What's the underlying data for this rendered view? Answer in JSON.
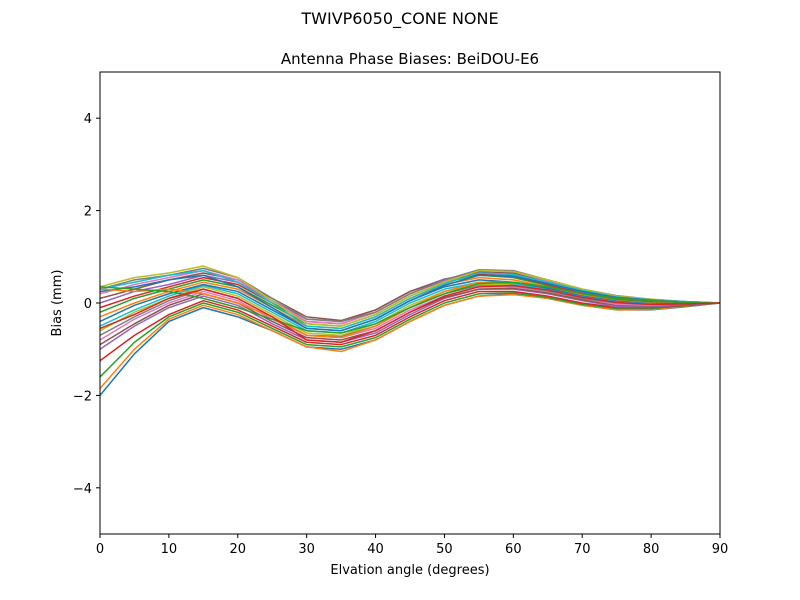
{
  "chart_data": {
    "type": "line",
    "suptitle": "TWIVP6050_CONE  NONE",
    "title": "Antenna Phase Biases: BeiDOU-E6",
    "xlabel": "Elvation angle (degrees)",
    "ylabel": "Bias (mm)",
    "xlim": [
      0,
      90
    ],
    "ylim": [
      -5,
      5
    ],
    "xticks": [
      0,
      10,
      20,
      30,
      40,
      50,
      60,
      70,
      80,
      90
    ],
    "yticks": [
      -4,
      -2,
      0,
      2,
      4
    ],
    "ytick_labels": [
      "−4",
      "−2",
      "0",
      "2",
      "4"
    ],
    "grid": false,
    "legend": "none",
    "x": [
      0,
      5,
      10,
      15,
      20,
      25,
      30,
      35,
      40,
      45,
      50,
      55,
      60,
      65,
      70,
      75,
      80,
      85,
      90
    ],
    "palette": [
      "#1f77b4",
      "#ff7f0e",
      "#2ca02c",
      "#d62728",
      "#9467bd",
      "#8c564b",
      "#e377c2",
      "#7f7f7f",
      "#bcbd22",
      "#17becf"
    ],
    "series": [
      {
        "values": [
          -2.0,
          -1.1,
          -0.4,
          -0.1,
          -0.3,
          -0.6,
          -0.95,
          -1.0,
          -0.8,
          -0.4,
          -0.05,
          0.15,
          0.2,
          0.1,
          -0.05,
          -0.15,
          -0.15,
          -0.08,
          0.0
        ]
      },
      {
        "values": [
          -1.85,
          -1.0,
          -0.35,
          -0.05,
          -0.25,
          -0.6,
          -0.95,
          -1.05,
          -0.8,
          -0.4,
          -0.05,
          0.15,
          0.18,
          0.1,
          -0.05,
          -0.15,
          -0.14,
          -0.07,
          0.0
        ]
      },
      {
        "values": [
          -1.6,
          -0.85,
          -0.3,
          0.0,
          -0.2,
          -0.55,
          -0.9,
          -0.95,
          -0.75,
          -0.35,
          0.0,
          0.2,
          0.22,
          0.12,
          -0.03,
          -0.12,
          -0.12,
          -0.06,
          0.0
        ]
      },
      {
        "values": [
          -1.25,
          -0.7,
          -0.25,
          0.05,
          -0.15,
          -0.5,
          -0.85,
          -0.9,
          -0.7,
          -0.3,
          0.05,
          0.25,
          0.25,
          0.15,
          0.0,
          -0.1,
          -0.1,
          -0.05,
          0.0
        ]
      },
      {
        "values": [
          -1.0,
          -0.5,
          -0.1,
          0.15,
          -0.05,
          -0.45,
          -0.8,
          -0.85,
          -0.65,
          -0.25,
          0.1,
          0.3,
          0.3,
          0.2,
          0.05,
          -0.08,
          -0.08,
          -0.04,
          0.0
        ]
      },
      {
        "values": [
          -0.9,
          -0.45,
          -0.05,
          0.2,
          0.0,
          -0.4,
          -0.75,
          -0.8,
          -0.6,
          -0.2,
          0.12,
          0.3,
          0.32,
          0.22,
          0.07,
          -0.05,
          -0.06,
          -0.03,
          0.0
        ]
      },
      {
        "values": [
          -0.8,
          -0.35,
          0.0,
          0.25,
          0.05,
          -0.35,
          -0.7,
          -0.75,
          -0.55,
          -0.15,
          0.15,
          0.35,
          0.35,
          0.25,
          0.1,
          -0.03,
          -0.05,
          -0.02,
          0.0
        ]
      },
      {
        "values": [
          -0.7,
          -0.3,
          0.05,
          0.3,
          0.1,
          -0.3,
          -0.7,
          -0.72,
          -0.5,
          -0.1,
          0.2,
          0.38,
          0.37,
          0.26,
          0.1,
          0.0,
          -0.03,
          -0.02,
          0.0
        ]
      },
      {
        "values": [
          -0.6,
          -0.2,
          0.1,
          0.35,
          0.15,
          -0.25,
          -0.65,
          -0.7,
          -0.45,
          -0.05,
          0.25,
          0.4,
          0.4,
          0.28,
          0.12,
          0.02,
          -0.02,
          -0.01,
          0.0
        ]
      },
      {
        "values": [
          -0.5,
          -0.15,
          0.15,
          0.38,
          0.2,
          -0.2,
          -0.6,
          -0.65,
          -0.4,
          0.0,
          0.3,
          0.45,
          0.42,
          0.3,
          0.14,
          0.04,
          0.0,
          0.0,
          0.0
        ]
      },
      {
        "values": [
          -0.4,
          -0.05,
          0.2,
          0.4,
          0.25,
          -0.15,
          -0.55,
          -0.6,
          -0.35,
          0.05,
          0.35,
          0.5,
          0.45,
          0.32,
          0.16,
          0.05,
          0.01,
          0.0,
          0.0
        ]
      },
      {
        "values": [
          -0.3,
          0.0,
          0.25,
          0.45,
          0.3,
          -0.1,
          -0.5,
          -0.55,
          -0.3,
          0.1,
          0.4,
          0.55,
          0.5,
          0.35,
          0.18,
          0.07,
          0.02,
          0.01,
          0.0
        ]
      },
      {
        "values": [
          -0.2,
          0.1,
          0.3,
          0.5,
          0.35,
          -0.05,
          -0.45,
          -0.5,
          -0.25,
          0.15,
          0.45,
          0.6,
          0.55,
          0.38,
          0.2,
          0.08,
          0.03,
          0.01,
          0.0
        ]
      },
      {
        "values": [
          -0.1,
          0.15,
          0.35,
          0.55,
          0.4,
          0.0,
          -0.4,
          -0.45,
          -0.2,
          0.2,
          0.5,
          0.62,
          0.58,
          0.4,
          0.22,
          0.1,
          0.04,
          0.02,
          0.0
        ]
      },
      {
        "values": [
          0.0,
          0.25,
          0.4,
          0.6,
          0.45,
          0.05,
          -0.35,
          -0.4,
          -0.15,
          0.25,
          0.52,
          0.65,
          0.6,
          0.42,
          0.24,
          0.12,
          0.05,
          0.02,
          0.0
        ]
      },
      {
        "values": [
          0.1,
          0.3,
          0.5,
          0.65,
          0.5,
          0.1,
          -0.3,
          -0.38,
          -0.15,
          0.25,
          0.5,
          0.68,
          0.65,
          0.45,
          0.25,
          0.12,
          0.06,
          0.02,
          0.0
        ]
      },
      {
        "values": [
          0.2,
          0.4,
          0.55,
          0.7,
          0.5,
          0.05,
          -0.4,
          -0.45,
          -0.2,
          0.2,
          0.48,
          0.7,
          0.68,
          0.48,
          0.28,
          0.14,
          0.07,
          0.03,
          0.0
        ]
      },
      {
        "values": [
          0.3,
          0.5,
          0.6,
          0.75,
          0.55,
          0.1,
          -0.35,
          -0.4,
          -0.2,
          0.2,
          0.5,
          0.72,
          0.7,
          0.5,
          0.3,
          0.16,
          0.08,
          0.03,
          0.0
        ]
      },
      {
        "values": [
          0.35,
          0.55,
          0.65,
          0.8,
          0.55,
          0.05,
          -0.45,
          -0.5,
          -0.25,
          0.15,
          0.45,
          0.7,
          0.68,
          0.5,
          0.3,
          0.15,
          0.08,
          0.03,
          0.0
        ]
      },
      {
        "values": [
          0.3,
          0.45,
          0.6,
          0.7,
          0.45,
          0.0,
          -0.5,
          -0.55,
          -0.3,
          0.1,
          0.42,
          0.65,
          0.62,
          0.45,
          0.27,
          0.13,
          0.07,
          0.03,
          0.0
        ]
      },
      {
        "values": [
          0.25,
          0.35,
          0.5,
          0.6,
          0.35,
          -0.1,
          -0.55,
          -0.6,
          -0.35,
          0.05,
          0.38,
          0.6,
          0.58,
          0.42,
          0.25,
          0.12,
          0.06,
          0.02,
          0.0
        ]
      },
      {
        "values": [
          0.3,
          0.25,
          0.3,
          0.2,
          0.0,
          -0.3,
          -0.7,
          -0.75,
          -0.5,
          -0.1,
          0.25,
          0.45,
          0.45,
          0.35,
          0.2,
          0.1,
          0.05,
          0.02,
          0.0
        ]
      },
      {
        "values": [
          0.35,
          0.3,
          0.25,
          0.1,
          -0.1,
          -0.35,
          -0.6,
          -0.65,
          -0.45,
          -0.1,
          0.2,
          0.42,
          0.45,
          0.35,
          0.2,
          0.1,
          0.05,
          0.02,
          0.0
        ]
      },
      {
        "values": [
          -0.55,
          -0.25,
          0.1,
          0.3,
          0.1,
          -0.3,
          -0.8,
          -0.85,
          -0.6,
          -0.2,
          0.15,
          0.35,
          0.38,
          0.28,
          0.12,
          0.01,
          -0.03,
          -0.02,
          0.0
        ]
      }
    ]
  }
}
